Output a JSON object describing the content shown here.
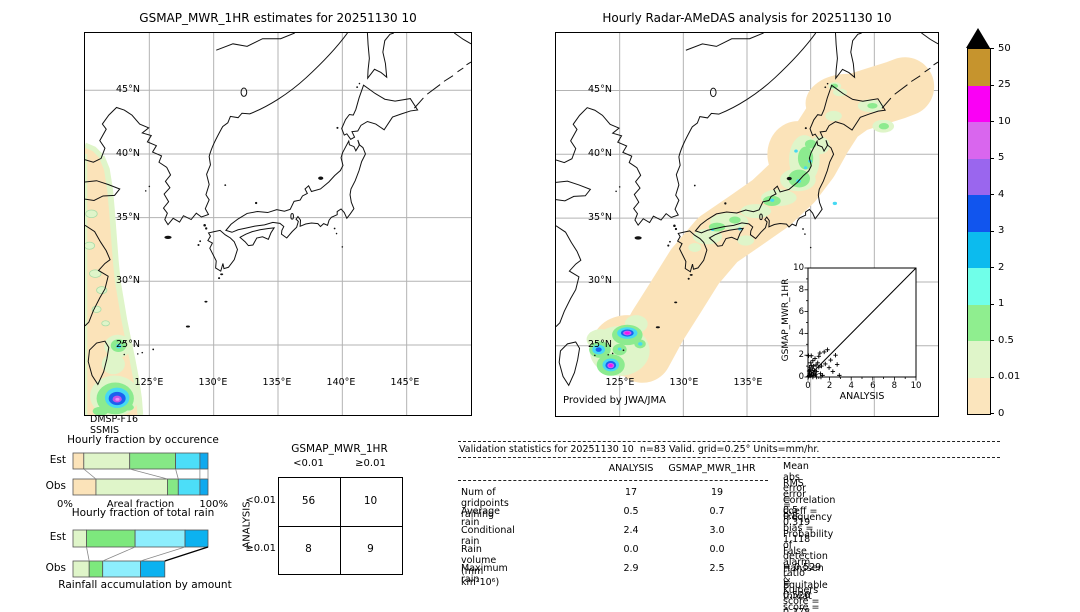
{
  "figure": {
    "left_map": {
      "title": "GSMAP_MWR_1HR estimates for 20251130 10",
      "source_line1": "DMSP-F16",
      "source_line2": "SSMIS",
      "lat_ticks": [
        "45°N",
        "40°N",
        "35°N",
        "30°N",
        "25°N"
      ],
      "lon_ticks": [
        "125°E",
        "130°E",
        "135°E",
        "140°E",
        "145°E"
      ]
    },
    "right_map": {
      "title": "Hourly Radar-AMeDAS analysis for 20251130 10",
      "credit": "Provided by JWA/JMA",
      "lat_ticks": [
        "45°N",
        "40°N",
        "35°N",
        "30°N",
        "25°N"
      ],
      "lon_ticks": [
        "125°E",
        "130°E",
        "135°E"
      ]
    }
  },
  "chart_data": [
    {
      "id": "occurrence_fractions",
      "type": "bar",
      "orientation": "horizontal-stacked",
      "title": "Hourly fraction by occurence",
      "categories": [
        "Est",
        "Obs"
      ],
      "xlabel": "Areal fraction",
      "xticks": [
        "0%",
        "100%"
      ],
      "xlim": [
        0,
        100
      ],
      "segment_colors": [
        "#fbe3b9",
        "#dff5c9",
        "#86e886",
        "#4cdef8",
        "#0fa9ee"
      ],
      "series": [
        {
          "name": "Est",
          "values": [
            8,
            34,
            34,
            18,
            6
          ]
        },
        {
          "name": "Obs",
          "values": [
            17,
            53,
            8,
            16,
            6
          ]
        }
      ]
    },
    {
      "id": "total_rain_fractions",
      "type": "bar",
      "orientation": "horizontal-stacked",
      "title": "Hourly fraction of total rain",
      "categories": [
        "Est",
        "Obs"
      ],
      "xlabel": "Rainfall accumulation by amount",
      "xlim": [
        0,
        100
      ],
      "segment_colors": [
        "#dff5c9",
        "#7de87d",
        "#8deefd",
        "#0cb2f0"
      ],
      "series": [
        {
          "name": "Est",
          "values": [
            10,
            36,
            37,
            17
          ]
        },
        {
          "name": "Obs",
          "values": [
            12,
            10,
            28,
            18
          ]
        }
      ],
      "bar_totals": [
        100,
        68
      ]
    },
    {
      "id": "contingency_table",
      "type": "table",
      "title": "GSMAP_MWR_1HR",
      "side_label": "ANALYSIS",
      "col_labels": [
        "<0.01",
        "≥0.01"
      ],
      "row_labels": [
        "<0.01",
        "≥0.01"
      ],
      "values": [
        [
          56,
          10
        ],
        [
          8,
          9
        ]
      ]
    },
    {
      "id": "validation_scatter",
      "type": "scatter",
      "xlabel": "ANALYSIS",
      "ylabel": "GSMAP_MWR_1HR",
      "xlim": [
        0,
        10
      ],
      "ylim": [
        0,
        10
      ],
      "xticks": [
        0,
        2,
        4,
        6,
        8,
        10
      ],
      "yticks": [
        0,
        2,
        4,
        6,
        8,
        10
      ],
      "diagonal": true,
      "marker": "+",
      "points": [
        [
          0.05,
          0.05
        ],
        [
          0.1,
          0.15
        ],
        [
          0.1,
          0.55
        ],
        [
          0.15,
          0.3
        ],
        [
          0.15,
          0.9
        ],
        [
          0.2,
          0.1
        ],
        [
          0.2,
          0.65
        ],
        [
          0.25,
          1.3
        ],
        [
          0.3,
          0.45
        ],
        [
          0.3,
          1.05
        ],
        [
          0.35,
          0.2
        ],
        [
          0.4,
          0.75
        ],
        [
          0.45,
          1.5
        ],
        [
          0.5,
          0.35
        ],
        [
          0.5,
          1.0
        ],
        [
          0.55,
          0.15
        ],
        [
          0.6,
          0.6
        ],
        [
          0.65,
          1.7
        ],
        [
          0.7,
          0.25
        ],
        [
          0.75,
          1.1
        ],
        [
          0.8,
          0.5
        ],
        [
          0.9,
          1.3
        ],
        [
          1.0,
          0.9
        ],
        [
          1.0,
          1.9
        ],
        [
          1.1,
          2.2
        ],
        [
          1.15,
          0.3
        ],
        [
          1.25,
          1.0
        ],
        [
          1.35,
          0.15
        ],
        [
          1.5,
          2.3
        ],
        [
          1.6,
          1.2
        ],
        [
          1.8,
          2.5
        ],
        [
          1.95,
          0.85
        ],
        [
          2.1,
          1.55
        ],
        [
          2.3,
          0.5
        ],
        [
          2.55,
          2.0
        ],
        [
          2.7,
          1.15
        ],
        [
          2.9,
          0.15
        ],
        [
          0.05,
          1.95
        ],
        [
          0.3,
          1.95
        ],
        [
          0.45,
          0.0
        ],
        [
          0.8,
          0.0
        ],
        [
          1.2,
          0.0
        ]
      ]
    },
    {
      "id": "colorbar",
      "type": "colorbar",
      "units": "mm/hr",
      "tick_labels": [
        "50",
        "25",
        "10",
        "5",
        "4",
        "3",
        "2",
        "1",
        "0.5",
        "0.01",
        "0"
      ],
      "colors_top_to_bottom": [
        "#c6942d",
        "#fa00f5",
        "#d966ee",
        "#9a66ee",
        "#1155ee",
        "#0cbbee",
        "#70ffe9",
        "#8fee8f",
        "#dff5c9",
        "#fbe5bd"
      ],
      "overflow_color": "#000000"
    }
  ],
  "validation_table": {
    "title": "Validation statistics for 20251130 10  n=83 Valid. grid=0.25° Units=mm/hr.",
    "headers": [
      "ANALYSIS",
      "GSMAP_MWR_1HR"
    ],
    "rows": [
      {
        "label": "Num of gridpoints raining",
        "analysis": "17",
        "gsmap": "19"
      },
      {
        "label": "Average rain",
        "analysis": "0.5",
        "gsmap": "0.7"
      },
      {
        "label": "Conditional rain",
        "analysis": "2.4",
        "gsmap": "3.0"
      },
      {
        "label": "Rain volume (mm km²10⁶)",
        "analysis": "0.0",
        "gsmap": "0.0"
      },
      {
        "label": "Maximum rain",
        "analysis": "2.9",
        "gsmap": "2.5"
      }
    ]
  },
  "scores": {
    "items": [
      {
        "label": "Mean abs error",
        "value": "0.5"
      },
      {
        "label": "RMS error",
        "value": "0.8"
      },
      {
        "label": "Correlation coeff",
        "value": "0.319"
      },
      {
        "label": "Frequency bias",
        "value": "1.118"
      },
      {
        "label": "Probability of detection",
        "value": "0.529"
      },
      {
        "label": "False alarm ratio",
        "value": "0.526"
      },
      {
        "label": "Hanssen & Kuipers score",
        "value": "0.378"
      },
      {
        "label": "Equitable threat score",
        "value": "0.221"
      }
    ]
  }
}
